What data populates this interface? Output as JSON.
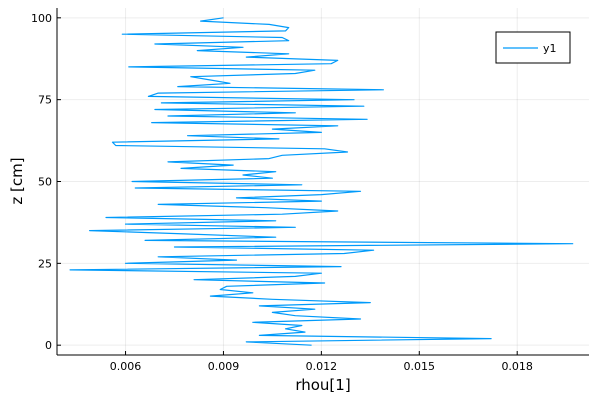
{
  "chart_data": {
    "type": "line",
    "xlabel": "rhou[1]",
    "ylabel": "z [cm]",
    "xlim": [
      0.0039,
      0.0202
    ],
    "ylim": [
      -3,
      103
    ],
    "xticks": [
      0.006,
      0.009,
      0.012,
      0.015,
      0.018
    ],
    "xtick_labels": [
      "0.006",
      "0.009",
      "0.012",
      "0.015",
      "0.018"
    ],
    "yticks": [
      0,
      25,
      50,
      75,
      100
    ],
    "ytick_labels": [
      "0",
      "25",
      "50",
      "75",
      "100"
    ],
    "grid": true,
    "legend": {
      "position": "top-right",
      "entries": [
        "y1"
      ]
    },
    "series": [
      {
        "name": "y1",
        "color": "#009AFA",
        "points": [
          [
            0.0117,
            0
          ],
          [
            0.0097,
            1
          ],
          [
            0.0172,
            2
          ],
          [
            0.0101,
            3
          ],
          [
            0.0115,
            4
          ],
          [
            0.0109,
            5
          ],
          [
            0.0114,
            6
          ],
          [
            0.0099,
            7
          ],
          [
            0.0132,
            8
          ],
          [
            0.0112,
            9
          ],
          [
            0.0105,
            10
          ],
          [
            0.0118,
            11
          ],
          [
            0.0101,
            12
          ],
          [
            0.0135,
            13
          ],
          [
            0.0105,
            14
          ],
          [
            0.0086,
            15
          ],
          [
            0.0099,
            16
          ],
          [
            0.0089,
            17
          ],
          [
            0.0091,
            18
          ],
          [
            0.0121,
            19
          ],
          [
            0.0081,
            20
          ],
          [
            0.0112,
            21
          ],
          [
            0.012,
            22
          ],
          [
            0.0043,
            23
          ],
          [
            0.0126,
            24
          ],
          [
            0.006,
            25
          ],
          [
            0.0094,
            26
          ],
          [
            0.007,
            27
          ],
          [
            0.0127,
            28
          ],
          [
            0.0136,
            29
          ],
          [
            0.0075,
            30
          ],
          [
            0.0197,
            31
          ],
          [
            0.0066,
            32
          ],
          [
            0.0106,
            33
          ],
          [
            0.0078,
            34
          ],
          [
            0.0049,
            35
          ],
          [
            0.0112,
            36
          ],
          [
            0.006,
            37
          ],
          [
            0.0106,
            38
          ],
          [
            0.0054,
            39
          ],
          [
            0.0108,
            40
          ],
          [
            0.0125,
            41
          ],
          [
            0.0103,
            42
          ],
          [
            0.007,
            43
          ],
          [
            0.012,
            44
          ],
          [
            0.0094,
            45
          ],
          [
            0.012,
            46
          ],
          [
            0.0132,
            47
          ],
          [
            0.0063,
            48
          ],
          [
            0.0114,
            49
          ],
          [
            0.0062,
            50
          ],
          [
            0.0105,
            51
          ],
          [
            0.0096,
            52
          ],
          [
            0.0106,
            53
          ],
          [
            0.0077,
            54
          ],
          [
            0.0093,
            55
          ],
          [
            0.0073,
            56
          ],
          [
            0.0104,
            57
          ],
          [
            0.0108,
            58
          ],
          [
            0.0128,
            59
          ],
          [
            0.0121,
            60
          ],
          [
            0.0057,
            61
          ],
          [
            0.0056,
            62
          ],
          [
            0.0107,
            63
          ],
          [
            0.0079,
            64
          ],
          [
            0.012,
            65
          ],
          [
            0.0105,
            66
          ],
          [
            0.0125,
            67
          ],
          [
            0.0068,
            68
          ],
          [
            0.0134,
            69
          ],
          [
            0.0073,
            70
          ],
          [
            0.0112,
            71
          ],
          [
            0.0069,
            72
          ],
          [
            0.0133,
            73
          ],
          [
            0.0071,
            74
          ],
          [
            0.013,
            75
          ],
          [
            0.0067,
            76
          ],
          [
            0.007,
            77
          ],
          [
            0.0139,
            78
          ],
          [
            0.0076,
            79
          ],
          [
            0.0092,
            80
          ],
          [
            0.0086,
            81
          ],
          [
            0.008,
            82
          ],
          [
            0.0112,
            83
          ],
          [
            0.0118,
            84
          ],
          [
            0.0061,
            85
          ],
          [
            0.0123,
            86
          ],
          [
            0.0125,
            87
          ],
          [
            0.0097,
            88
          ],
          [
            0.011,
            89
          ],
          [
            0.0082,
            90
          ],
          [
            0.0096,
            91
          ],
          [
            0.0069,
            92
          ],
          [
            0.011,
            93
          ],
          [
            0.0108,
            94
          ],
          [
            0.0059,
            95
          ],
          [
            0.0109,
            96
          ],
          [
            0.011,
            97
          ],
          [
            0.0104,
            98
          ],
          [
            0.0083,
            99
          ],
          [
            0.009,
            100
          ]
        ]
      }
    ]
  }
}
